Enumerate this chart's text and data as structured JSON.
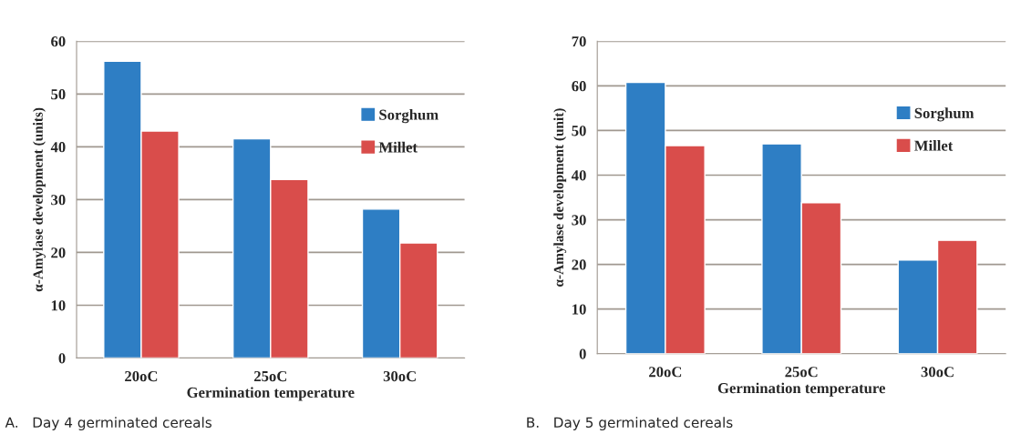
{
  "chart_data": [
    {
      "type": "bar",
      "xlabel": "Germination temperature",
      "ylabel": "α-Amylase development (units)",
      "categories": [
        "20oC",
        "25oC",
        "30oC"
      ],
      "series": [
        {
          "name": "Sorghum",
          "color": "#2e7ec4",
          "values": [
            56.2,
            41.5,
            28.2
          ]
        },
        {
          "name": "Millet",
          "color": "#d94d4b",
          "values": [
            43,
            33.8,
            21.8
          ]
        }
      ],
      "ylim": [
        0,
        60
      ],
      "yticks": [
        0,
        10,
        20,
        30,
        40,
        50,
        60
      ],
      "grid": "y",
      "legend": "top right",
      "annotations": [
        "A.   Day 4 germinated cereals"
      ]
    },
    {
      "type": "bar",
      "xlabel": "Germination temperature",
      "ylabel": "α-Amylase development (unit)",
      "categories": [
        "20oC",
        "25oC",
        "30oC"
      ],
      "series": [
        {
          "name": "Sorghum",
          "color": "#2e7ec4",
          "values": [
            60.8,
            47,
            21
          ]
        },
        {
          "name": "Millet",
          "color": "#d94d4b",
          "values": [
            46.6,
            33.8,
            25.4
          ]
        }
      ],
      "ylim": [
        0,
        70
      ],
      "yticks": [
        0,
        10,
        20,
        30,
        40,
        50,
        60,
        70
      ],
      "grid": "y",
      "legend": "top right",
      "annotations": [
        "B.   Day 5 germinated cereals"
      ]
    }
  ]
}
